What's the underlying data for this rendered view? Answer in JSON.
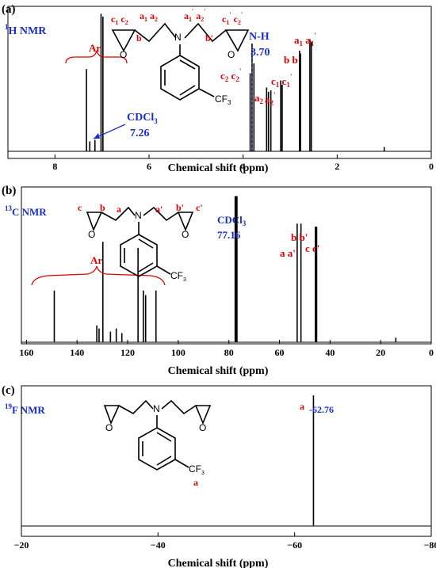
{
  "chart_data": [
    {
      "type": "line",
      "panel_label": "(a)",
      "nucleus_label": "1H NMR",
      "xlabel": "Chemical shift (ppm)",
      "xlim": [
        9,
        0
      ],
      "xticks": [
        8,
        6,
        4,
        2,
        0
      ],
      "peaks": [
        {
          "x": 7.33,
          "h": 0.58
        },
        {
          "x": 7.26,
          "h": 0.07
        },
        {
          "x": 7.15,
          "h": 0.08
        },
        {
          "x": 7.02,
          "h": 0.97
        },
        {
          "x": 6.98,
          "h": 0.95
        },
        {
          "x": 3.85,
          "h": 0.55
        },
        {
          "x": 3.81,
          "h": 0.76
        },
        {
          "x": 3.77,
          "h": 0.62
        },
        {
          "x": 3.5,
          "h": 0.45
        },
        {
          "x": 3.46,
          "h": 0.42
        },
        {
          "x": 3.41,
          "h": 0.43
        },
        {
          "x": 3.2,
          "h": 0.5
        },
        {
          "x": 3.17,
          "h": 0.47
        },
        {
          "x": 2.8,
          "h": 0.71
        },
        {
          "x": 2.78,
          "h": 0.69
        },
        {
          "x": 2.58,
          "h": 0.79
        },
        {
          "x": 2.55,
          "h": 0.77
        },
        {
          "x": 1.0,
          "h": 0.03
        }
      ],
      "annotations": {
        "ar": "Ar",
        "cdcl3_label": "CDCl",
        "cdcl3_sub": "3",
        "cdcl3_value": "7.26",
        "nh_label": "N-H",
        "nh_value": "3.70",
        "cf3": "CF",
        "cf3_sub": "3",
        "c2c2p": "c",
        "a2": "a",
        "a2p": "a",
        "c1c1p": "c",
        "bbp": "b b'",
        "a1a1p": "a",
        "mol_c1c2": "c",
        "mol_b": "b",
        "mol_a1a2": "a",
        "mol_a1pa2p": "a",
        "mol_bp": "b'",
        "mol_c1pc2p": "c",
        "n": "N",
        "o": "O"
      }
    },
    {
      "type": "line",
      "panel_label": "(b)",
      "nucleus_label": "13C NMR",
      "xlabel": "Chemical shift (ppm)",
      "xlim": [
        162,
        0
      ],
      "xticks": [
        160,
        140,
        120,
        100,
        80,
        60,
        40,
        20,
        0
      ],
      "peaks": [
        {
          "x": 149.0,
          "h": 0.34
        },
        {
          "x": 132.2,
          "h": 0.11
        },
        {
          "x": 131.3,
          "h": 0.09
        },
        {
          "x": 129.8,
          "h": 0.66
        },
        {
          "x": 126.8,
          "h": 0.07
        },
        {
          "x": 124.5,
          "h": 0.09
        },
        {
          "x": 122.3,
          "h": 0.06
        },
        {
          "x": 115.9,
          "h": 0.62
        },
        {
          "x": 113.8,
          "h": 0.34
        },
        {
          "x": 112.9,
          "h": 0.31
        },
        {
          "x": 108.8,
          "h": 0.34
        },
        {
          "x": 77.5,
          "h": 0.96
        },
        {
          "x": 77.16,
          "h": 0.96
        },
        {
          "x": 76.8,
          "h": 0.96
        },
        {
          "x": 53.0,
          "h": 0.78
        },
        {
          "x": 51.5,
          "h": 0.78
        },
        {
          "x": 45.8,
          "h": 0.76
        },
        {
          "x": 45.3,
          "h": 0.76
        },
        {
          "x": 14.0,
          "h": 0.03
        }
      ],
      "annotations": {
        "ar": "Ar",
        "cdcl3_label": "CDCl",
        "cdcl3_sub": "3",
        "cdcl3_value": "77.16",
        "peak_b_bp": "b b'",
        "peak_a_ap": "a a'",
        "peak_c_cp": "c c'",
        "mol_c": "c",
        "mol_b": "b",
        "mol_a": "a",
        "mol_ap": "a'",
        "mol_bp": "b'",
        "mol_cp": "c'",
        "cf3": "CF",
        "cf3_sub": "3",
        "n": "N",
        "o": "O"
      }
    },
    {
      "type": "line",
      "panel_label": "(c)",
      "nucleus_label": "19F NMR",
      "xlabel": "Chemical shift (ppm)",
      "xlim": [
        -20,
        -80
      ],
      "xticks": [
        -20,
        -40,
        -60,
        -80
      ],
      "xtick_labels": [
        "−20",
        "−40",
        "−60",
        "−80"
      ],
      "peaks": [
        {
          "x": -62.76,
          "h": 0.97
        }
      ],
      "annotations": {
        "peak_letter": "a",
        "peak_value": "-62.76",
        "mol_a": "a",
        "cf3": "CF",
        "cf3_sub": "3",
        "n": "N",
        "o": "O"
      }
    }
  ]
}
